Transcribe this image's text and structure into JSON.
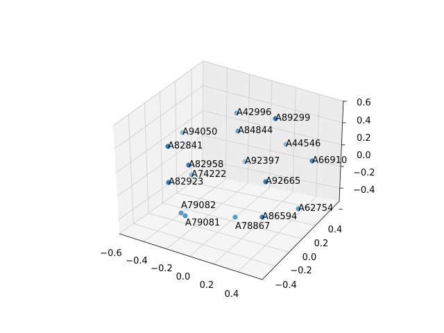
{
  "chart_data": {
    "type": "scatter",
    "projection": "3d",
    "title": "",
    "xlabel": "",
    "ylabel": "",
    "zlabel": "",
    "x_ticks": [
      "−0.6",
      "−0.4",
      "−0.2",
      "0.0",
      "0.2",
      "0.4"
    ],
    "y_ticks": [
      "−0.4",
      "−0.2",
      "0.0",
      "0.2",
      "0.4"
    ],
    "z_ticks": [
      "0.6",
      "0.4",
      "0.2",
      "0.0",
      "−0.2",
      "−0.4"
    ],
    "xlim": [
      -0.6,
      0.6
    ],
    "ylim": [
      -0.5,
      0.55
    ],
    "zlim": [
      -0.55,
      0.6
    ],
    "grid": true,
    "marker_color": "#1f77b4",
    "points": [
      {
        "label": "A42996"
      },
      {
        "label": "A89299"
      },
      {
        "label": "A94050"
      },
      {
        "label": "A84844"
      },
      {
        "label": "A82841"
      },
      {
        "label": "A44546"
      },
      {
        "label": "A92397"
      },
      {
        "label": "A66910"
      },
      {
        "label": "A82958"
      },
      {
        "label": "A74222"
      },
      {
        "label": "A82923"
      },
      {
        "label": "A92665"
      },
      {
        "label": "A62754"
      },
      {
        "label": "A79082"
      },
      {
        "label": "A79081"
      },
      {
        "label": "A78867"
      },
      {
        "label": "A86594"
      }
    ]
  }
}
